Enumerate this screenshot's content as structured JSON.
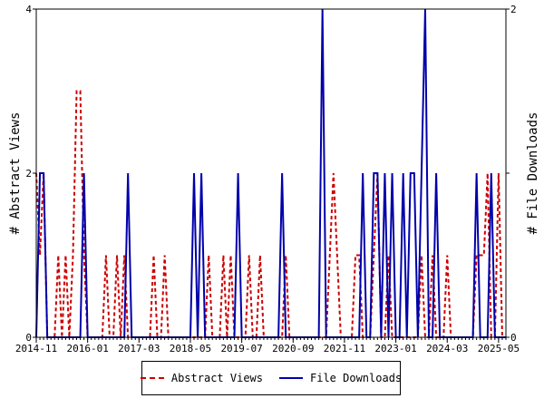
{
  "chart_data": {
    "type": "line",
    "title": "",
    "xlabel": "",
    "ylabel_left": "# Abstract Views",
    "ylabel_right": "# File Downloads",
    "x_ticks": [
      "2014-11",
      "2016-01",
      "2017-03",
      "2018-05",
      "2019-07",
      "2020-09",
      "2021-11",
      "2023-01",
      "2024-03",
      "2025-05"
    ],
    "ylim_left": [
      0,
      4
    ],
    "ylim_right": [
      0,
      2
    ],
    "yticks_left": [
      0,
      2,
      4
    ],
    "yticks_right": [
      0,
      1,
      2
    ],
    "yticklabels_right": [
      "0",
      "",
      "2"
    ],
    "grid": false,
    "legend": "bottom",
    "x": [
      "2014-11",
      "2014-12",
      "2015-01",
      "2015-02",
      "2015-03",
      "2015-04",
      "2015-05",
      "2015-06",
      "2015-07",
      "2015-08",
      "2015-09",
      "2015-10",
      "2015-11",
      "2015-12",
      "2016-01",
      "2016-02",
      "2016-03",
      "2016-04",
      "2016-05",
      "2016-06",
      "2016-07",
      "2016-08",
      "2016-09",
      "2016-10",
      "2016-11",
      "2016-12",
      "2017-01",
      "2017-02",
      "2017-03",
      "2017-04",
      "2017-05",
      "2017-06",
      "2017-07",
      "2017-08",
      "2017-09",
      "2017-10",
      "2017-11",
      "2017-12",
      "2018-01",
      "2018-02",
      "2018-03",
      "2018-04",
      "2018-05",
      "2018-06",
      "2018-07",
      "2018-08",
      "2018-09",
      "2018-10",
      "2018-11",
      "2018-12",
      "2019-01",
      "2019-02",
      "2019-03",
      "2019-04",
      "2019-05",
      "2019-06",
      "2019-07",
      "2019-08",
      "2019-09",
      "2019-10",
      "2019-11",
      "2019-12",
      "2020-01",
      "2020-02",
      "2020-03",
      "2020-04",
      "2020-05",
      "2020-06",
      "2020-07",
      "2020-08",
      "2020-09",
      "2020-10",
      "2020-11",
      "2020-12",
      "2021-01",
      "2021-02",
      "2021-03",
      "2021-04",
      "2021-05",
      "2021-06",
      "2021-07",
      "2021-08",
      "2021-09",
      "2021-10",
      "2021-11",
      "2021-12",
      "2022-01",
      "2022-02",
      "2022-03",
      "2022-04",
      "2022-05",
      "2022-06",
      "2022-07",
      "2022-08",
      "2022-09",
      "2022-10",
      "2022-11",
      "2022-12",
      "2023-01",
      "2023-02",
      "2023-03",
      "2023-04",
      "2023-05",
      "2023-06",
      "2023-07",
      "2023-08",
      "2023-09",
      "2023-10",
      "2023-11",
      "2023-12",
      "2024-01",
      "2024-02",
      "2024-03",
      "2024-04",
      "2024-05",
      "2024-06",
      "2024-07",
      "2024-08",
      "2024-09",
      "2024-10",
      "2024-11",
      "2024-12",
      "2025-01",
      "2025-02",
      "2025-03",
      "2025-04",
      "2025-05",
      "2025-06",
      "2025-07"
    ],
    "series": [
      {
        "name": "Abstract Views",
        "axis": "left",
        "color": "#cc0000",
        "style": "dashed",
        "values": [
          2,
          1,
          2,
          0,
          0,
          0,
          1,
          0,
          1,
          0,
          1,
          3,
          3,
          1,
          0,
          0,
          0,
          0,
          0,
          1,
          0,
          0,
          1,
          0,
          1,
          0,
          0,
          0,
          0,
          0,
          0,
          0,
          1,
          0,
          0,
          1,
          0,
          0,
          0,
          0,
          0,
          0,
          0,
          0,
          0,
          0,
          0,
          1,
          0,
          0,
          0,
          1,
          0,
          1,
          0,
          0,
          0,
          0,
          1,
          0,
          0,
          1,
          0,
          0,
          0,
          0,
          0,
          0,
          1,
          0,
          0,
          0,
          0,
          0,
          0,
          0,
          0,
          0,
          0,
          0,
          1,
          2,
          1,
          0,
          0,
          0,
          0,
          1,
          1,
          0,
          0,
          0,
          1,
          2,
          0,
          0,
          1,
          0,
          0,
          0,
          0,
          0,
          0,
          0,
          0,
          1,
          0,
          0,
          1,
          0,
          0,
          0,
          1,
          0,
          0,
          0,
          0,
          0,
          0,
          0,
          1,
          1,
          1,
          2,
          0,
          0,
          2,
          0,
          0
        ]
      },
      {
        "name": "File Downloads",
        "axis": "right",
        "color": "#0000aa",
        "style": "solid",
        "values": [
          0,
          1,
          1,
          0,
          0,
          0,
          0,
          0,
          0,
          0,
          0,
          0,
          0,
          1,
          0,
          0,
          0,
          0,
          0,
          0,
          0,
          0,
          0,
          0,
          0,
          1,
          0,
          0,
          0,
          0,
          0,
          0,
          0,
          0,
          0,
          0,
          0,
          0,
          0,
          0,
          0,
          0,
          0,
          1,
          0,
          1,
          0,
          0,
          0,
          0,
          0,
          0,
          0,
          0,
          0,
          1,
          0,
          0,
          0,
          0,
          0,
          0,
          0,
          0,
          0,
          0,
          0,
          1,
          0,
          0,
          0,
          0,
          0,
          0,
          0,
          0,
          0,
          0,
          2,
          0,
          0,
          0,
          0,
          0,
          0,
          0,
          0,
          0,
          0,
          1,
          0,
          0,
          1,
          1,
          0,
          1,
          0,
          1,
          0,
          0,
          1,
          0,
          1,
          1,
          0,
          1,
          2,
          0,
          0,
          1,
          0,
          0,
          0,
          0,
          0,
          0,
          0,
          0,
          0,
          0,
          1,
          0,
          0,
          0,
          1,
          0,
          0,
          0,
          0
        ]
      }
    ]
  }
}
